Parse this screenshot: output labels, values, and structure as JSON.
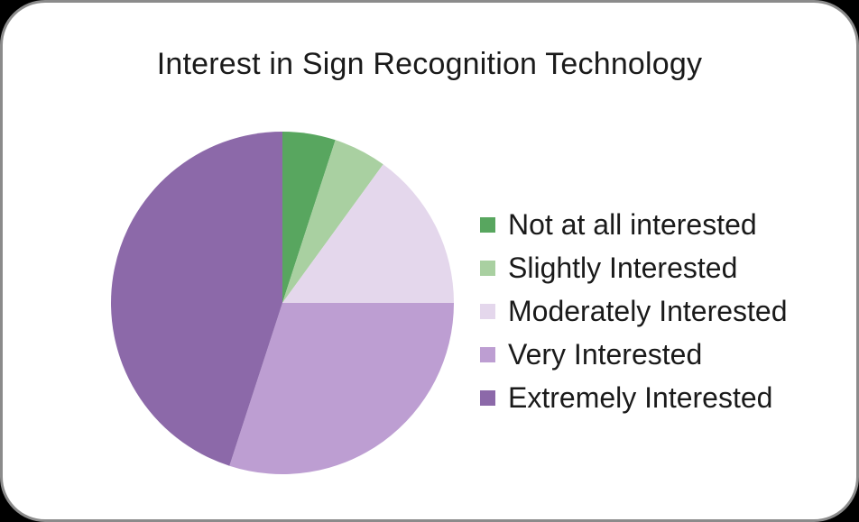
{
  "window": {
    "background_color": "#000000",
    "card_background": "#FFFFFF",
    "card_border_color": "#8B8B8B"
  },
  "chart_data": {
    "type": "pie",
    "title": "Interest in Sign Recognition Technology",
    "categories": [
      "Not at all interested",
      "Slightly Interested",
      "Moderately Interested",
      "Very Interested",
      "Extremely Interested"
    ],
    "values": [
      5,
      5,
      15,
      30,
      45
    ],
    "unit": "percent",
    "colors": [
      "#58A65F",
      "#A9D0A1",
      "#E4D7EC",
      "#BD9ED2",
      "#8C69A9"
    ],
    "start_angle_deg": 0,
    "direction": "clockwise",
    "legend_position": "right",
    "legend_text_color": "#1A1A1A",
    "title_color": "#1A1A1A"
  }
}
